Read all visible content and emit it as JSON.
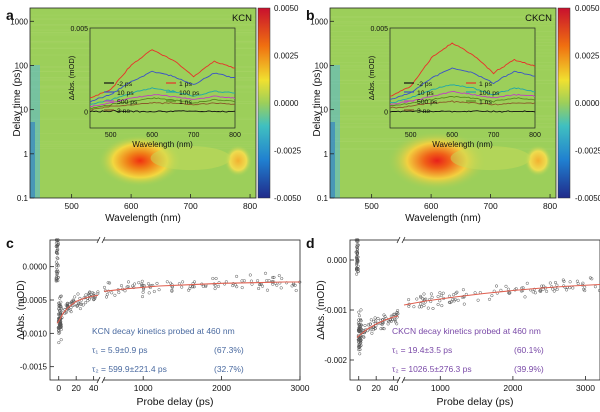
{
  "chart_data": [
    {
      "panel_label": "a",
      "type": "heatmap",
      "title": "KCN",
      "xlabel": "Wavelength (nm)",
      "ylabel": "Delay time (ps)",
      "xlim": [
        430,
        810
      ],
      "ylim": [
        0.1,
        2000
      ],
      "yscale": "log",
      "xticks": [
        "500",
        "600",
        "700",
        "800"
      ],
      "yticks": [
        "0.1",
        "1",
        "10",
        "100",
        "1000"
      ],
      "colorbar": {
        "min": -0.005,
        "max": 0.005,
        "ticks": [
          "0.0050",
          "0.0025",
          "0.0000",
          "-0.0025",
          "-0.0050"
        ]
      },
      "hotspots": [
        {
          "wavelength_nm": 615,
          "delay_ps": 0.7,
          "value": 0.0035
        },
        {
          "wavelength_nm": 780,
          "delay_ps": 0.7,
          "value": 0.0015
        }
      ],
      "inset": {
        "type": "line",
        "xlabel": "Wavelength (nm)",
        "ylabel": "ΔAbs. (mOD)",
        "xlim": [
          450,
          800
        ],
        "ylim": [
          -0.001,
          0.005
        ],
        "yticks": [
          "0",
          "0.005"
        ],
        "xticks": [
          "500",
          "600",
          "700",
          "800"
        ],
        "legend": [
          "-2 ps",
          "1 ps",
          "10 ps",
          "100 ps",
          "500 ps",
          "1 ns",
          "3 ns"
        ],
        "series": [
          {
            "name": "-2 ps",
            "color": "#111111",
            "x": [
              450,
              500,
              550,
              600,
              650,
              700,
              750,
              800
            ],
            "y": [
              0.0,
              0.0,
              0.0,
              0.0,
              0.0,
              0.0,
              0.0,
              0.0
            ]
          },
          {
            "name": "1 ps",
            "color": "#e8302a",
            "x": [
              450,
              500,
              550,
              600,
              650,
              700,
              750,
              800
            ],
            "y": [
              0.0008,
              0.0013,
              0.0028,
              0.0037,
              0.0031,
              0.0021,
              0.003,
              0.0026
            ]
          },
          {
            "name": "10 ps",
            "color": "#3a52c8",
            "x": [
              450,
              500,
              550,
              600,
              650,
              700,
              750,
              800
            ],
            "y": [
              0.0006,
              0.001,
              0.0018,
              0.0024,
              0.0021,
              0.0016,
              0.0023,
              0.002
            ]
          },
          {
            "name": "100 ps",
            "color": "#20a8a8",
            "x": [
              450,
              500,
              550,
              600,
              650,
              700,
              750,
              800
            ],
            "y": [
              0.0004,
              0.0007,
              0.0011,
              0.0014,
              0.0012,
              0.0009,
              0.0012,
              0.0011
            ]
          },
          {
            "name": "500 ps",
            "color": "#c040c0",
            "x": [
              450,
              500,
              550,
              600,
              650,
              700,
              750,
              800
            ],
            "y": [
              0.0003,
              0.0005,
              0.0008,
              0.001,
              0.0009,
              0.0007,
              0.0009,
              0.0008
            ]
          },
          {
            "name": "1 ns",
            "color": "#5a8a20",
            "x": [
              450,
              500,
              550,
              600,
              650,
              700,
              750,
              800
            ],
            "y": [
              0.0002,
              0.0004,
              0.0006,
              0.0008,
              0.0007,
              0.0005,
              0.0007,
              0.0006
            ]
          },
          {
            "name": "3 ns",
            "color": "#8a5a2a",
            "x": [
              450,
              500,
              550,
              600,
              650,
              700,
              750,
              800
            ],
            "y": [
              0.0001,
              0.0003,
              0.0004,
              0.0005,
              0.0005,
              0.0004,
              0.0005,
              0.0004
            ]
          }
        ]
      }
    },
    {
      "panel_label": "b",
      "type": "heatmap",
      "title": "CKCN",
      "xlabel": "Wavelength (nm)",
      "ylabel": "Delay time (ps)",
      "xlim": [
        430,
        810
      ],
      "ylim": [
        0.1,
        2000
      ],
      "yscale": "log",
      "xticks": [
        "500",
        "600",
        "700",
        "800"
      ],
      "yticks": [
        "0.1",
        "1",
        "10",
        "100",
        "1000"
      ],
      "colorbar": {
        "min": -0.005,
        "max": 0.005,
        "ticks": [
          "0.0050",
          "0.0025",
          "0.0000",
          "-0.0025",
          "-0.0050"
        ]
      },
      "hotspots": [
        {
          "wavelength_nm": 610,
          "delay_ps": 0.7,
          "value": 0.0045
        },
        {
          "wavelength_nm": 780,
          "delay_ps": 0.7,
          "value": 0.002
        }
      ],
      "inset": {
        "type": "line",
        "xlabel": "Wavelength (nm)",
        "ylabel": "ΔAbs. (mOD)",
        "xlim": [
          450,
          800
        ],
        "ylim": [
          -0.001,
          0.005
        ],
        "yticks": [
          "0",
          "0.005"
        ],
        "xticks": [
          "500",
          "600",
          "700",
          "800"
        ],
        "legend": [
          "-2 ps",
          "1 ps",
          "10 ps",
          "100 ps",
          "500 ps",
          "1 ns",
          "3 ns"
        ],
        "series": [
          {
            "name": "-2 ps",
            "color": "#111111",
            "x": [
              450,
              500,
              550,
              600,
              650,
              700,
              750,
              800
            ],
            "y": [
              0.0,
              0.0,
              0.0,
              0.0,
              0.0,
              0.0,
              0.0,
              0.0
            ]
          },
          {
            "name": "1 ps",
            "color": "#e8302a",
            "x": [
              450,
              500,
              550,
              600,
              650,
              700,
              750,
              800
            ],
            "y": [
              0.0009,
              0.0015,
              0.0032,
              0.0041,
              0.0034,
              0.0023,
              0.0031,
              0.0027
            ]
          },
          {
            "name": "10 ps",
            "color": "#3a52c8",
            "x": [
              450,
              500,
              550,
              600,
              650,
              700,
              750,
              800
            ],
            "y": [
              0.0007,
              0.0011,
              0.002,
              0.0026,
              0.0023,
              0.0017,
              0.0024,
              0.0021
            ]
          },
          {
            "name": "100 ps",
            "color": "#20a8a8",
            "x": [
              450,
              500,
              550,
              600,
              650,
              700,
              750,
              800
            ],
            "y": [
              0.0005,
              0.0008,
              0.0013,
              0.0016,
              0.0014,
              0.001,
              0.0014,
              0.0012
            ]
          },
          {
            "name": "500 ps",
            "color": "#c040c0",
            "x": [
              450,
              500,
              550,
              600,
              650,
              700,
              750,
              800
            ],
            "y": [
              0.0004,
              0.0006,
              0.0009,
              0.0012,
              0.001,
              0.0008,
              0.001,
              0.0009
            ]
          },
          {
            "name": "1 ns",
            "color": "#5a8a20",
            "x": [
              450,
              500,
              550,
              600,
              650,
              700,
              750,
              800
            ],
            "y": [
              0.0003,
              0.0005,
              0.0007,
              0.0009,
              0.0008,
              0.0006,
              0.0008,
              0.0007
            ]
          },
          {
            "name": "3 ns",
            "color": "#8a5a2a",
            "x": [
              450,
              500,
              550,
              600,
              650,
              700,
              750,
              800
            ],
            "y": [
              0.0002,
              0.0003,
              0.0005,
              0.0006,
              0.0005,
              0.0004,
              0.0005,
              0.0005
            ]
          }
        ]
      }
    },
    {
      "panel_label": "c",
      "type": "scatter",
      "title": "",
      "xlabel": "Probe delay (ps)",
      "ylabel": "ΔAbs. (mOD)",
      "x_break": {
        "left": [
          -10,
          45
        ],
        "right": [
          500,
          3000
        ]
      },
      "ylim": [
        -0.0017,
        0.0004
      ],
      "yticks": [
        "0.0000",
        "-0.0005",
        "-0.0010",
        "-0.0015"
      ],
      "xticks_left": [
        "0",
        "20",
        "40"
      ],
      "xticks_right": [
        "1000",
        "2000",
        "3000"
      ],
      "fit_color": "#e06050",
      "marker_color": "#555555",
      "annotation": {
        "heading": "KCN decay kinetics probed at 460 nm",
        "line1": "τ₁ = 5.9±0.9 ps",
        "pct1": "(67.3%)",
        "line2": "τ₂ = 599.9±221.4 ps",
        "pct2": "(32.7%)",
        "color": "#4a6aa0"
      },
      "fit": {
        "left": {
          "x": [
            -2,
            0,
            2,
            5,
            10,
            20,
            30,
            40,
            45
          ],
          "y": [
            -0.00085,
            -0.00082,
            -0.00077,
            -0.0007,
            -0.00062,
            -0.00052,
            -0.00047,
            -0.00044,
            -0.00043
          ]
        },
        "right": {
          "x": [
            500,
            800,
            1200,
            1600,
            2000,
            2400,
            2800,
            3000
          ],
          "y": [
            -0.00037,
            -0.00033,
            -0.00029,
            -0.00027,
            -0.00025,
            -0.00024,
            -0.00023,
            -0.00023
          ]
        }
      }
    },
    {
      "panel_label": "d",
      "type": "scatter",
      "title": "",
      "xlabel": "Probe delay (ps)",
      "ylabel": "ΔAbs. (mOD)",
      "x_break": {
        "left": [
          -10,
          45
        ],
        "right": [
          500,
          3200
        ]
      },
      "ylim": [
        -0.0024,
        0.0004
      ],
      "yticks": [
        "0.000",
        "-0.001",
        "-0.002"
      ],
      "xticks_left": [
        "0",
        "20",
        "40"
      ],
      "xticks_right": [
        "1000",
        "2000",
        "3000"
      ],
      "fit_color": "#e06050",
      "marker_color": "#555555",
      "annotation": {
        "heading": "CKCN decay kinetics probed at 460 nm",
        "line1": "τ₁ = 19.4±3.5 ps",
        "pct1": "(60.1%)",
        "line2": "τ₂ = 1026.5±276.3 ps",
        "pct2": "(39.9%)",
        "color": "#7a4aa8"
      },
      "fit": {
        "left": {
          "x": [
            -2,
            0,
            5,
            10,
            20,
            30,
            40,
            45
          ],
          "y": [
            -0.00155,
            -0.00152,
            -0.00145,
            -0.00138,
            -0.00128,
            -0.0012,
            -0.00114,
            -0.00112
          ]
        },
        "right": {
          "x": [
            500,
            800,
            1200,
            1600,
            2000,
            2400,
            2800,
            3200
          ],
          "y": [
            -0.0009,
            -0.00082,
            -0.00074,
            -0.00067,
            -0.00061,
            -0.00056,
            -0.00052,
            -0.00049
          ]
        }
      }
    }
  ]
}
